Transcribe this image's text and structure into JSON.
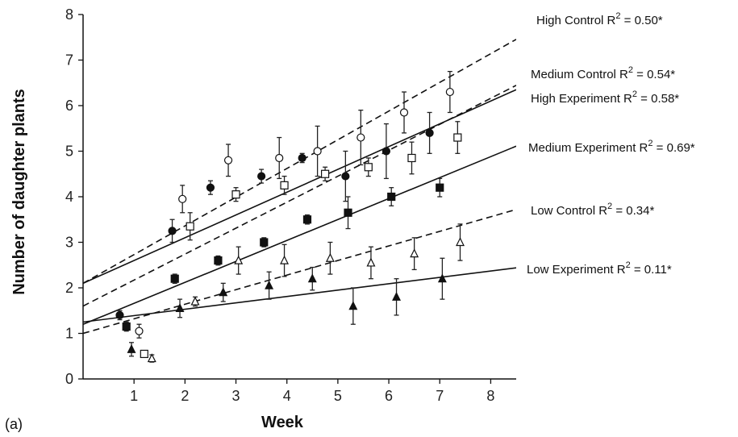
{
  "panel_label": "(a)",
  "chart_data": {
    "type": "scatter",
    "xlabel": "Week",
    "ylabel": "Number of daughter plants",
    "xlim": [
      0,
      8.5
    ],
    "ylim": [
      0,
      8
    ],
    "xticks": [
      1,
      2,
      3,
      4,
      5,
      6,
      7,
      8
    ],
    "yticks": [
      0,
      1,
      2,
      3,
      4,
      5,
      6,
      7,
      8
    ],
    "legend_placement": "right",
    "series": [
      {
        "name": "High Control",
        "r2_text": "R2 = 0.50*",
        "marker": "circle-filled",
        "line": "dashed",
        "fit": {
          "intercept": 2.1,
          "slope": 0.63
        },
        "points": [
          {
            "x": 0.72,
            "y": 1.4,
            "err": 0.1
          },
          {
            "x": 1.75,
            "y": 3.25,
            "err": 0.25
          },
          {
            "x": 2.5,
            "y": 4.2,
            "err": 0.15
          },
          {
            "x": 3.5,
            "y": 4.45,
            "err": 0.15
          },
          {
            "x": 4.3,
            "y": 4.85,
            "err": 0.1
          },
          {
            "x": 5.15,
            "y": 4.45,
            "err": 0.55
          },
          {
            "x": 5.95,
            "y": 5.0,
            "err": 0.6
          },
          {
            "x": 6.8,
            "y": 5.4,
            "err": 0.45
          }
        ]
      },
      {
        "name": "Medium Control",
        "r2_text": "R2 = 0.54*",
        "marker": "circle-open",
        "line": "dashed",
        "fit": {
          "intercept": 1.6,
          "slope": 0.57
        },
        "points": [
          {
            "x": 1.1,
            "y": 1.05,
            "err": 0.15
          },
          {
            "x": 1.95,
            "y": 3.95,
            "err": 0.3
          },
          {
            "x": 2.85,
            "y": 4.8,
            "err": 0.35
          },
          {
            "x": 3.85,
            "y": 4.85,
            "err": 0.45
          },
          {
            "x": 4.6,
            "y": 5.0,
            "err": 0.55
          },
          {
            "x": 5.45,
            "y": 5.3,
            "err": 0.6
          },
          {
            "x": 6.3,
            "y": 5.85,
            "err": 0.45
          },
          {
            "x": 7.2,
            "y": 6.3,
            "err": 0.45
          }
        ]
      },
      {
        "name": "High Experiment",
        "r2_text": "R2 = 0.58*",
        "marker": "square-open",
        "line": "solid",
        "fit": {
          "intercept": 2.1,
          "slope": 0.5
        },
        "points": [
          {
            "x": 1.2,
            "y": 0.55,
            "err": 0.05
          },
          {
            "x": 2.1,
            "y": 3.35,
            "err": 0.3
          },
          {
            "x": 3.0,
            "y": 4.05,
            "err": 0.15
          },
          {
            "x": 3.95,
            "y": 4.25,
            "err": 0.2
          },
          {
            "x": 4.75,
            "y": 4.5,
            "err": 0.15
          },
          {
            "x": 5.6,
            "y": 4.65,
            "err": 0.2
          },
          {
            "x": 6.45,
            "y": 4.85,
            "err": 0.35
          },
          {
            "x": 7.35,
            "y": 5.3,
            "err": 0.35
          }
        ]
      },
      {
        "name": "Medium Experiment",
        "r2_text": "R2 = 0.69*",
        "marker": "square-filled",
        "line": "solid",
        "fit": {
          "intercept": 1.2,
          "slope": 0.46
        },
        "points": [
          {
            "x": 0.85,
            "y": 1.15,
            "err": 0.1
          },
          {
            "x": 1.8,
            "y": 2.2,
            "err": 0.1
          },
          {
            "x": 2.65,
            "y": 2.6,
            "err": 0.1
          },
          {
            "x": 3.55,
            "y": 3.0,
            "err": 0.1
          },
          {
            "x": 4.4,
            "y": 3.5,
            "err": 0.1
          },
          {
            "x": 5.2,
            "y": 3.65,
            "err": 0.35
          },
          {
            "x": 6.05,
            "y": 4.0,
            "err": 0.2
          },
          {
            "x": 7.0,
            "y": 4.2,
            "err": 0.2
          }
        ]
      },
      {
        "name": "Low Control",
        "r2_text": "R2 = 0.34*",
        "marker": "triangle-open",
        "line": "dashed",
        "fit": {
          "intercept": 1.0,
          "slope": 0.32
        },
        "points": [
          {
            "x": 1.35,
            "y": 0.45,
            "err": 0.08
          },
          {
            "x": 2.2,
            "y": 1.7,
            "err": 0.1
          },
          {
            "x": 3.05,
            "y": 2.6,
            "err": 0.3
          },
          {
            "x": 3.95,
            "y": 2.6,
            "err": 0.35
          },
          {
            "x": 4.85,
            "y": 2.65,
            "err": 0.35
          },
          {
            "x": 5.65,
            "y": 2.55,
            "err": 0.35
          },
          {
            "x": 6.5,
            "y": 2.75,
            "err": 0.35
          },
          {
            "x": 7.4,
            "y": 3.0,
            "err": 0.4
          }
        ]
      },
      {
        "name": "Low Experiment",
        "r2_text": "R2 = 0.11*",
        "marker": "triangle-filled",
        "line": "solid",
        "fit": {
          "intercept": 1.25,
          "slope": 0.14
        },
        "points": [
          {
            "x": 0.95,
            "y": 0.65,
            "err": 0.15
          },
          {
            "x": 1.9,
            "y": 1.55,
            "err": 0.2
          },
          {
            "x": 2.75,
            "y": 1.9,
            "err": 0.2
          },
          {
            "x": 3.65,
            "y": 2.05,
            "err": 0.3
          },
          {
            "x": 4.5,
            "y": 2.2,
            "err": 0.25
          },
          {
            "x": 5.3,
            "y": 1.6,
            "err": 0.4
          },
          {
            "x": 6.15,
            "y": 1.8,
            "err": 0.4
          },
          {
            "x": 7.05,
            "y": 2.2,
            "err": 0.45
          }
        ]
      }
    ]
  }
}
